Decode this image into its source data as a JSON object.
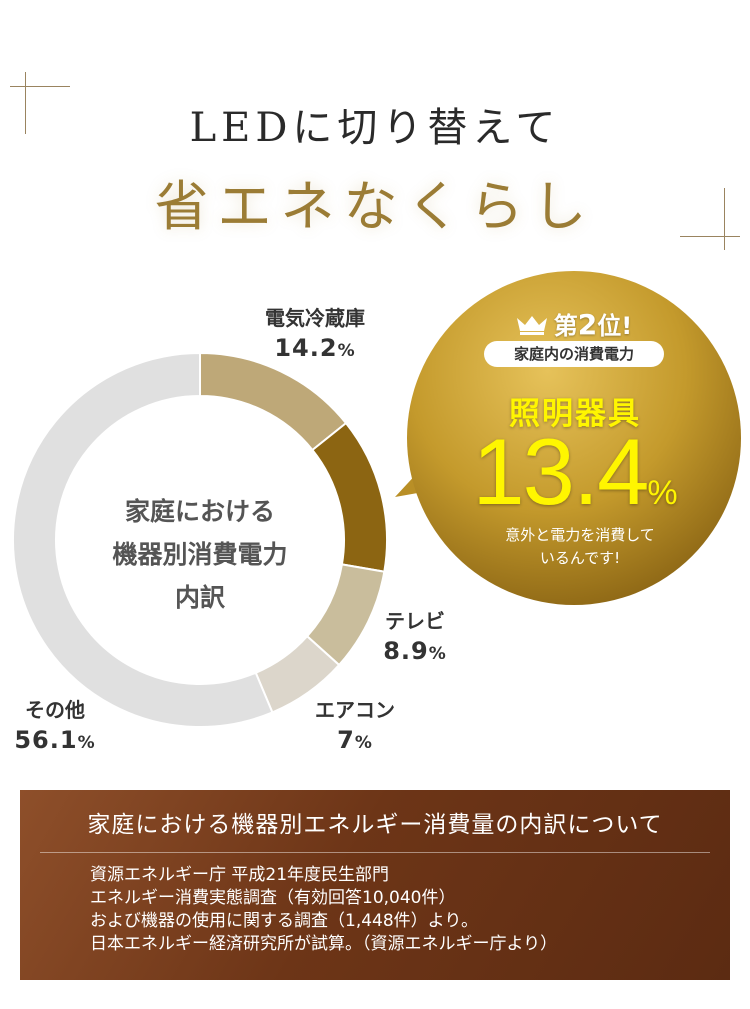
{
  "header": {
    "line1": "LEDに切り替えて",
    "line2": "省エネなくらし"
  },
  "chart_data": {
    "type": "pie",
    "center_label": [
      "家庭における",
      "機器別消費電力",
      "内訳"
    ],
    "unit": "%",
    "slices": [
      {
        "label": "電気冷蔵庫",
        "value": 14.2,
        "display": "14.2",
        "color": "#bea878"
      },
      {
        "label": "照明器具",
        "value": 13.4,
        "display": "13.4",
        "color": "#8c6512"
      },
      {
        "label": "テレビ",
        "value": 8.9,
        "display": "8.9",
        "color": "#c9bd9c"
      },
      {
        "label": "エアコン",
        "value": 7,
        "display": "7",
        "color": "#dcd6cb"
      },
      {
        "label": "その他",
        "value": 56.1,
        "display": "56.1",
        "color": "#e0e0e0"
      }
    ]
  },
  "bubble": {
    "rank_label": "第",
    "rank_number": "2",
    "rank_suffix": "位!",
    "subtitle": "家庭内の消費電力",
    "item": "照明器具",
    "value": "13.4",
    "unit": "%",
    "note_line1": "意外と電力を消費して",
    "note_line2": "いるんです!",
    "gold": "#c49a2c"
  },
  "source": {
    "title": "家庭における機器別エネルギー消費量の内訳について",
    "lines": [
      "資源エネルギー庁 平成21年度民生部門",
      "エネルギー消費実態調査（有効回答10,040件）",
      "および機器の使用に関する調査（1,448件）より。",
      "日本エネルギー経済研究所が試算。（資源エネルギー庁より）"
    ]
  }
}
